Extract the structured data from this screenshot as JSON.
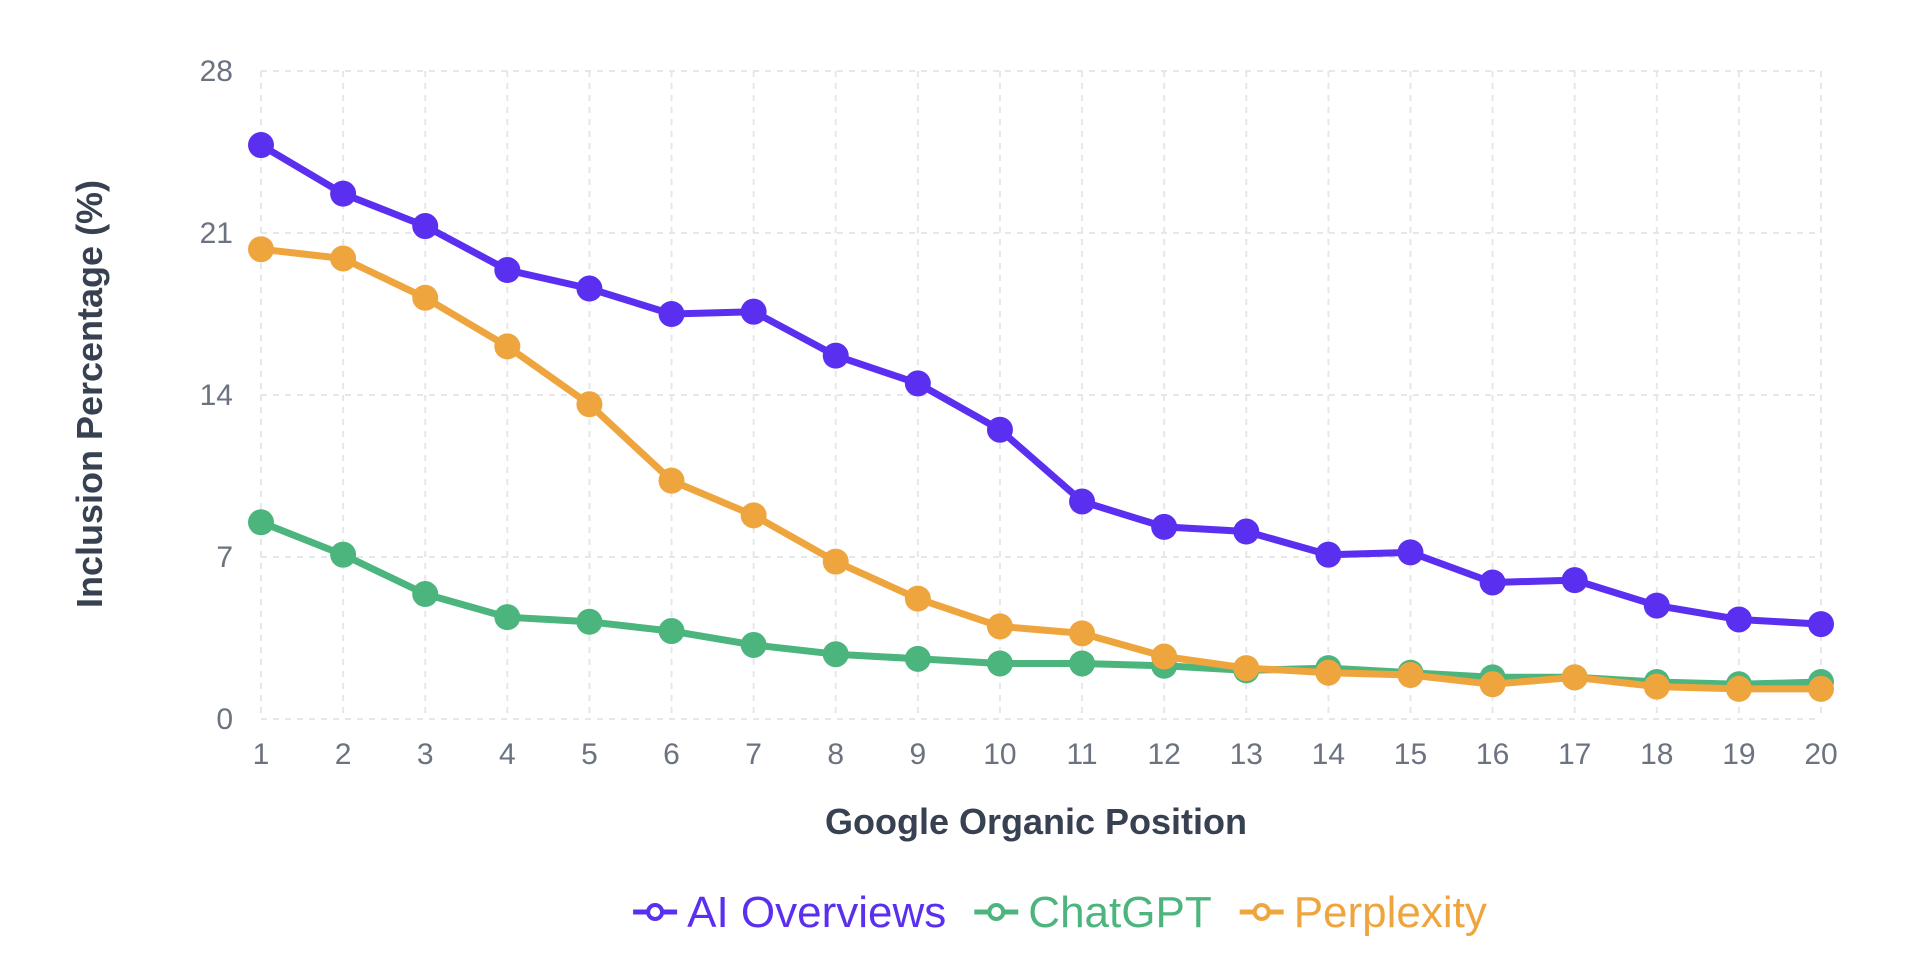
{
  "chart_data": {
    "type": "line",
    "title": "",
    "xlabel": "Google Organic Position",
    "ylabel": "Inclusion Percentage (%)",
    "x": [
      1,
      2,
      3,
      4,
      5,
      6,
      7,
      8,
      9,
      10,
      11,
      12,
      13,
      14,
      15,
      16,
      17,
      18,
      19,
      20
    ],
    "xticks": [
      "1",
      "2",
      "3",
      "4",
      "5",
      "6",
      "7",
      "8",
      "9",
      "10",
      "11",
      "12",
      "13",
      "14",
      "15",
      "16",
      "17",
      "18",
      "19",
      "20"
    ],
    "yticks": [
      0,
      7,
      14,
      21,
      28
    ],
    "ylim": [
      0,
      28
    ],
    "grid": true,
    "legend_position": "bottom",
    "series": [
      {
        "name": "AI Overviews",
        "color": "#5b2ff0",
        "values": [
          24.8,
          22.7,
          21.3,
          19.4,
          18.6,
          17.5,
          17.6,
          15.7,
          14.5,
          12.5,
          9.4,
          8.3,
          8.1,
          7.1,
          7.2,
          5.9,
          6.0,
          4.9,
          4.3,
          4.1
        ]
      },
      {
        "name": "ChatGPT",
        "color": "#4cb57d",
        "values": [
          8.5,
          7.1,
          5.4,
          4.4,
          4.2,
          3.8,
          3.2,
          2.8,
          2.6,
          2.4,
          2.4,
          2.3,
          2.1,
          2.2,
          2.0,
          1.8,
          1.8,
          1.6,
          1.5,
          1.6
        ]
      },
      {
        "name": "Perplexity",
        "color": "#efa53d",
        "values": [
          20.3,
          19.9,
          18.2,
          16.1,
          13.6,
          10.3,
          8.8,
          6.8,
          5.2,
          4.0,
          3.7,
          2.7,
          2.2,
          2.0,
          1.9,
          1.5,
          1.8,
          1.4,
          1.3,
          1.3
        ]
      }
    ]
  }
}
